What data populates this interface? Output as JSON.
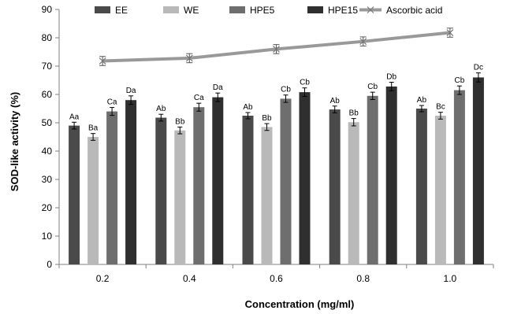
{
  "chart_data": {
    "type": "bar",
    "title": "",
    "xlabel": "Concentration (mg/ml)",
    "ylabel": "SOD-like activity (%)",
    "ylim": [
      0,
      90
    ],
    "yticks": [
      "0",
      "10",
      "20",
      "30",
      "40",
      "50",
      "60",
      "70",
      "80",
      "90"
    ],
    "categories": [
      "0.2",
      "0.4",
      "0.6",
      "0.8",
      "1.0"
    ],
    "legend_position": "top",
    "grid": false,
    "series": [
      {
        "name": "EE",
        "kind": "bar",
        "color": "#4a4a4a",
        "values": [
          49,
          51.8,
          52.5,
          54.7,
          55
        ],
        "errors": [
          1.2,
          1.2,
          1.1,
          1.2,
          1.1
        ],
        "labels": [
          "Aa",
          "Ab",
          "Ab",
          "Ab",
          "Ab"
        ]
      },
      {
        "name": "WE",
        "kind": "bar",
        "color": "#b9b9b9",
        "values": [
          45,
          47.3,
          48.5,
          50.2,
          52.5
        ],
        "errors": [
          1.2,
          1.2,
          1.2,
          1.3,
          1.2
        ],
        "labels": [
          "Ba",
          "Bb",
          "Bb",
          "Bb",
          "Bc"
        ]
      },
      {
        "name": "HPE5",
        "kind": "bar",
        "color": "#6e6e6e",
        "values": [
          54,
          55.5,
          58.5,
          59.5,
          61.5
        ],
        "errors": [
          1.4,
          1.4,
          1.3,
          1.3,
          1.5
        ],
        "labels": [
          "Ca",
          "Ca",
          "Cb",
          "Cb",
          "Cb"
        ]
      },
      {
        "name": "HPE15",
        "kind": "bar",
        "color": "#2f2f2f",
        "values": [
          58,
          59,
          60.8,
          62.8,
          66
        ],
        "errors": [
          1.5,
          1.5,
          1.5,
          1.5,
          1.6
        ],
        "labels": [
          "Da",
          "Da",
          "Cb",
          "Db",
          "Dc"
        ]
      },
      {
        "name": "Ascorbic acid",
        "kind": "line",
        "color": "#999999",
        "values": [
          71.8,
          72.8,
          76,
          78.7,
          81.8
        ],
        "errors": [
          1.6,
          1.6,
          1.6,
          1.6,
          1.6
        ]
      }
    ]
  }
}
